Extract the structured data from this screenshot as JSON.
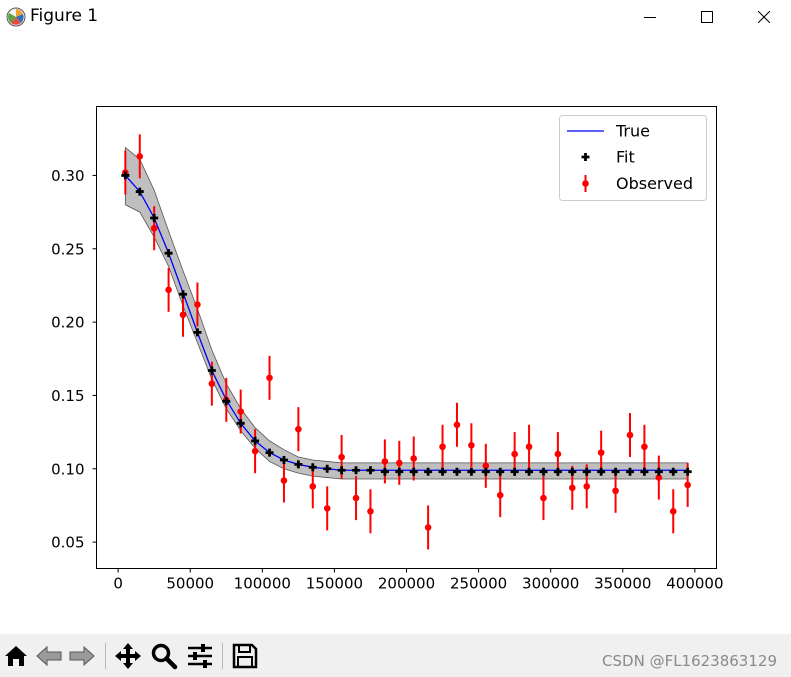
{
  "window": {
    "title": "Figure 1",
    "controls": [
      "minimize-icon",
      "maximize-icon",
      "close-icon"
    ]
  },
  "toolbar": {
    "icons": [
      "home-icon",
      "back-icon",
      "forward-icon",
      "pan-icon",
      "zoom-icon",
      "configure-subplots-icon",
      "save-icon"
    ],
    "watermark": "CSDN @FL1623863129"
  },
  "colors": {
    "true": "#0000ff",
    "fit": "#000000",
    "observed": "#ff0000",
    "band": "#808080"
  },
  "chart_data": {
    "type": "scatter",
    "xlim": [
      -15000,
      415000
    ],
    "ylim": [
      0.032,
      0.347
    ],
    "xticks": [
      0,
      50000,
      100000,
      150000,
      200000,
      250000,
      300000,
      350000,
      400000
    ],
    "xtick_labels": [
      "0",
      "50000",
      "100000",
      "150000",
      "200000",
      "250000",
      "300000",
      "350000",
      "400000"
    ],
    "yticks": [
      0.05,
      0.1,
      0.15,
      0.2,
      0.25,
      0.3
    ],
    "ytick_labels": [
      "0.05",
      "0.10",
      "0.15",
      "0.20",
      "0.25",
      "0.30"
    ],
    "legend": {
      "position": "upper right",
      "entries": [
        "True",
        "Fit",
        "Observed"
      ]
    },
    "x": [
      5000,
      15000,
      25000,
      35000,
      45000,
      55000,
      65000,
      75000,
      85000,
      95000,
      105000,
      115000,
      125000,
      135000,
      145000,
      155000,
      165000,
      175000,
      185000,
      195000,
      205000,
      215000,
      225000,
      235000,
      245000,
      255000,
      265000,
      275000,
      285000,
      295000,
      305000,
      315000,
      325000,
      335000,
      345000,
      355000,
      365000,
      375000,
      385000,
      395000
    ],
    "series": [
      {
        "name": "True",
        "style": "line",
        "values": [
          0.3,
          0.289,
          0.271,
          0.247,
          0.22,
          0.193,
          0.167,
          0.147,
          0.131,
          0.119,
          0.111,
          0.106,
          0.103,
          0.101,
          0.1,
          0.099,
          0.099,
          0.099,
          0.099,
          0.099,
          0.099,
          0.099,
          0.099,
          0.099,
          0.099,
          0.099,
          0.099,
          0.099,
          0.099,
          0.099,
          0.099,
          0.099,
          0.099,
          0.099,
          0.099,
          0.099,
          0.099,
          0.099,
          0.099,
          0.099
        ]
      },
      {
        "name": "Fit",
        "style": "markers",
        "values": [
          0.3,
          0.289,
          0.271,
          0.247,
          0.219,
          0.193,
          0.167,
          0.146,
          0.131,
          0.119,
          0.111,
          0.106,
          0.103,
          0.101,
          0.1,
          0.099,
          0.099,
          0.099,
          0.098,
          0.098,
          0.098,
          0.098,
          0.098,
          0.098,
          0.098,
          0.098,
          0.098,
          0.098,
          0.098,
          0.098,
          0.098,
          0.098,
          0.098,
          0.098,
          0.098,
          0.098,
          0.098,
          0.098,
          0.098,
          0.098
        ],
        "band_lower": [
          0.28,
          0.275,
          0.258,
          0.238,
          0.211,
          0.186,
          0.161,
          0.141,
          0.126,
          0.114,
          0.105,
          0.1,
          0.097,
          0.095,
          0.094,
          0.093,
          0.093,
          0.093,
          0.093,
          0.093,
          0.093,
          0.093,
          0.093,
          0.093,
          0.093,
          0.093,
          0.093,
          0.093,
          0.093,
          0.093,
          0.093,
          0.093,
          0.093,
          0.093,
          0.093,
          0.093,
          0.093,
          0.093,
          0.093,
          0.093
        ],
        "band_upper": [
          0.319,
          0.311,
          0.29,
          0.262,
          0.235,
          0.209,
          0.181,
          0.158,
          0.141,
          0.128,
          0.119,
          0.113,
          0.108,
          0.106,
          0.105,
          0.104,
          0.104,
          0.104,
          0.104,
          0.104,
          0.104,
          0.104,
          0.104,
          0.104,
          0.104,
          0.104,
          0.104,
          0.104,
          0.104,
          0.104,
          0.104,
          0.104,
          0.104,
          0.104,
          0.104,
          0.104,
          0.104,
          0.104,
          0.104,
          0.104
        ]
      },
      {
        "name": "Observed",
        "style": "errorbar",
        "values": [
          0.302,
          0.313,
          0.264,
          0.222,
          0.205,
          0.212,
          0.158,
          0.147,
          0.139,
          0.112,
          0.162,
          0.092,
          0.127,
          0.088,
          0.073,
          0.108,
          0.08,
          0.071,
          0.105,
          0.104,
          0.107,
          0.06,
          0.115,
          0.13,
          0.116,
          0.102,
          0.082,
          0.11,
          0.115,
          0.08,
          0.11,
          0.087,
          0.088,
          0.111,
          0.085,
          0.123,
          0.115,
          0.094,
          0.071,
          0.089
        ],
        "error": [
          0.015,
          0.015,
          0.015,
          0.015,
          0.015,
          0.015,
          0.015,
          0.015,
          0.015,
          0.015,
          0.015,
          0.015,
          0.015,
          0.015,
          0.015,
          0.015,
          0.015,
          0.015,
          0.015,
          0.015,
          0.015,
          0.015,
          0.015,
          0.015,
          0.015,
          0.015,
          0.015,
          0.015,
          0.015,
          0.015,
          0.015,
          0.015,
          0.015,
          0.015,
          0.015,
          0.015,
          0.015,
          0.015,
          0.015,
          0.015
        ]
      }
    ]
  }
}
